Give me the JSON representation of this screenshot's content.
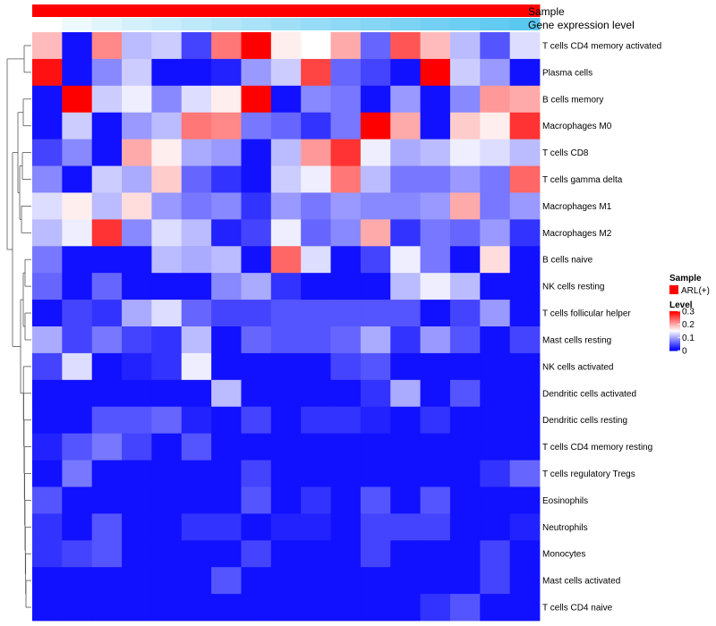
{
  "chart_data": {
    "type": "heatmap",
    "annotation_tracks": [
      {
        "name": "Sample",
        "color_start": "#ff0000",
        "color_end": "#ff0000"
      },
      {
        "name": "Gene expression level",
        "color_start": "#ffffff",
        "color_end": "#5bc8f0"
      }
    ],
    "rows": [
      "T cells CD4 memory activated",
      "Plasma cells",
      "B cells memory",
      "Macrophages M0",
      "T cells CD8",
      "T cells gamma delta",
      "Macrophages M1",
      "Macrophages M2",
      "B cells naive",
      "NK cells resting",
      "T cells follicular helper",
      "Mast cells resting",
      "NK cells activated",
      "Dendritic cells activated",
      "Dendritic cells resting",
      "T cells CD4 memory resting",
      "T cells regulatory  Tregs",
      "Eosinophils",
      "Neutrophils",
      "Monocytes",
      "Mast cells activated",
      "T cells CD4 naive"
    ],
    "values": [
      [
        0.19,
        0.01,
        0.22,
        0.11,
        0.12,
        0.04,
        0.23,
        0.3,
        0.16,
        0.15,
        0.2,
        0.06,
        0.25,
        0.19,
        0.11,
        0.05,
        0.13
      ],
      [
        0.29,
        0.01,
        0.08,
        0.12,
        0.01,
        0.01,
        0.02,
        0.09,
        0.12,
        0.26,
        0.06,
        0.04,
        0.01,
        0.3,
        0.12,
        0.09,
        0.01
      ],
      [
        0.01,
        0.3,
        0.12,
        0.14,
        0.08,
        0.13,
        0.16,
        0.3,
        0.01,
        0.08,
        0.07,
        0.01,
        0.09,
        0.01,
        0.08,
        0.21,
        0.2
      ],
      [
        0.01,
        0.12,
        0.01,
        0.09,
        0.11,
        0.23,
        0.22,
        0.07,
        0.06,
        0.03,
        0.07,
        0.3,
        0.2,
        0.01,
        0.18,
        0.16,
        0.27
      ],
      [
        0.04,
        0.08,
        0.01,
        0.2,
        0.16,
        0.1,
        0.09,
        0.01,
        0.11,
        0.21,
        0.27,
        0.14,
        0.1,
        0.11,
        0.14,
        0.13,
        0.11
      ],
      [
        0.08,
        0.01,
        0.12,
        0.1,
        0.18,
        0.06,
        0.03,
        0.01,
        0.12,
        0.14,
        0.23,
        0.11,
        0.07,
        0.07,
        0.09,
        0.07,
        0.24
      ],
      [
        0.13,
        0.16,
        0.11,
        0.17,
        0.09,
        0.07,
        0.08,
        0.03,
        0.09,
        0.07,
        0.09,
        0.08,
        0.08,
        0.09,
        0.2,
        0.07,
        0.09
      ],
      [
        0.11,
        0.14,
        0.27,
        0.08,
        0.13,
        0.11,
        0.02,
        0.04,
        0.14,
        0.06,
        0.08,
        0.2,
        0.03,
        0.07,
        0.06,
        0.09,
        0.03
      ],
      [
        0.07,
        0.01,
        0.01,
        0.01,
        0.11,
        0.1,
        0.11,
        0.01,
        0.24,
        0.13,
        0.01,
        0.04,
        0.14,
        0.07,
        0.01,
        0.17,
        0.01
      ],
      [
        0.06,
        0.01,
        0.06,
        0.01,
        0.01,
        0.01,
        0.08,
        0.1,
        0.03,
        0.01,
        0.01,
        0.01,
        0.11,
        0.14,
        0.11,
        0.01,
        0.01
      ],
      [
        0.01,
        0.04,
        0.03,
        0.1,
        0.13,
        0.06,
        0.04,
        0.04,
        0.05,
        0.05,
        0.05,
        0.05,
        0.05,
        0.01,
        0.04,
        0.09,
        0.01
      ],
      [
        0.1,
        0.04,
        0.07,
        0.04,
        0.03,
        0.11,
        0.01,
        0.06,
        0.05,
        0.05,
        0.06,
        0.1,
        0.03,
        0.09,
        0.05,
        0.01,
        0.04
      ],
      [
        0.04,
        0.13,
        0.01,
        0.02,
        0.03,
        0.14,
        0.01,
        0.01,
        0.01,
        0.01,
        0.04,
        0.05,
        0.01,
        0.01,
        0.01,
        0.01,
        0.01
      ],
      [
        0.01,
        0.01,
        0.01,
        0.01,
        0.01,
        0.01,
        0.11,
        0.01,
        0.01,
        0.01,
        0.01,
        0.03,
        0.1,
        0.01,
        0.05,
        0.01,
        0.01
      ],
      [
        0.01,
        0.01,
        0.05,
        0.05,
        0.06,
        0.02,
        0.01,
        0.04,
        0.01,
        0.03,
        0.03,
        0.02,
        0.01,
        0.03,
        0.01,
        0.01,
        0.01
      ],
      [
        0.02,
        0.05,
        0.07,
        0.04,
        0.01,
        0.05,
        0.01,
        0.01,
        0.01,
        0.01,
        0.01,
        0.01,
        0.01,
        0.01,
        0.01,
        0.01,
        0.01
      ],
      [
        0.01,
        0.07,
        0.01,
        0.01,
        0.01,
        0.01,
        0.01,
        0.04,
        0.01,
        0.01,
        0.01,
        0.01,
        0.01,
        0.01,
        0.01,
        0.03,
        0.06
      ],
      [
        0.05,
        0.01,
        0.01,
        0.01,
        0.01,
        0.01,
        0.01,
        0.05,
        0.01,
        0.03,
        0.01,
        0.05,
        0.01,
        0.05,
        0.01,
        0.01,
        0.01
      ],
      [
        0.03,
        0.01,
        0.05,
        0.01,
        0.01,
        0.03,
        0.03,
        0.01,
        0.02,
        0.02,
        0.01,
        0.04,
        0.04,
        0.04,
        0.01,
        0.01,
        0.02
      ],
      [
        0.03,
        0.04,
        0.05,
        0.01,
        0.01,
        0.01,
        0.01,
        0.04,
        0.01,
        0.01,
        0.01,
        0.04,
        0.01,
        0.01,
        0.01,
        0.04,
        0.01
      ],
      [
        0.01,
        0.01,
        0.01,
        0.01,
        0.01,
        0.01,
        0.05,
        0.01,
        0.01,
        0.01,
        0.01,
        0.01,
        0.01,
        0.01,
        0.01,
        0.04,
        0.01
      ],
      [
        0.01,
        0.01,
        0.01,
        0.01,
        0.01,
        0.01,
        0.01,
        0.01,
        0.01,
        0.01,
        0.01,
        0.01,
        0.01,
        0.03,
        0.05,
        0.01,
        0.01
      ]
    ],
    "color_scale": {
      "low": "#0000ff",
      "mid": "#ffffff",
      "high": "#ff0000",
      "mid_value": 0.15,
      "range": [
        0,
        0.3
      ]
    },
    "legends": [
      {
        "title": "Sample",
        "entries": [
          {
            "label": "ARL(+)",
            "color": "#ff0000"
          }
        ]
      },
      {
        "title": "Level",
        "ticks": [
          "0.3",
          "0.2",
          "0.1",
          "0"
        ],
        "tick_values": [
          0.3,
          0.2,
          0.1,
          0
        ]
      }
    ],
    "row_dendrogram": true
  }
}
